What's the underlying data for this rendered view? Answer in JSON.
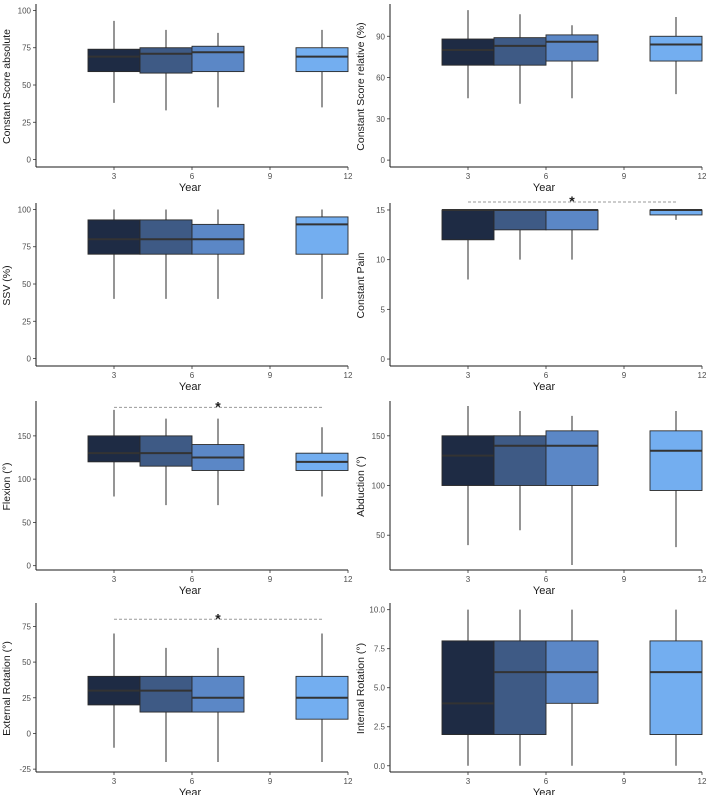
{
  "year_colors": {
    "3": "#1e2b44",
    "5": "#3e5a85",
    "7": "#5b87c6",
    "11": "#73aef0"
  },
  "chart_data": [
    {
      "type": "box",
      "xlabel": "Year",
      "ylabel": "Constant Score absolute",
      "xlim": [
        0,
        12
      ],
      "ylim": [
        -5,
        103
      ],
      "xticks": [
        3,
        6,
        9,
        12
      ],
      "yticks": [
        0,
        25,
        50,
        75,
        100
      ],
      "boxes": [
        {
          "x": 3,
          "min": 38,
          "q1": 59,
          "median": 69,
          "q3": 74,
          "max": 93
        },
        {
          "x": 5,
          "min": 33,
          "q1": 58,
          "median": 71,
          "q3": 75,
          "max": 87
        },
        {
          "x": 7,
          "min": 35,
          "q1": 59,
          "median": 72,
          "q3": 76,
          "max": 85
        },
        {
          "x": 11,
          "min": 35,
          "q1": 59,
          "median": 69,
          "q3": 75,
          "max": 87
        }
      ],
      "significance": null
    },
    {
      "type": "box",
      "xlabel": "Year",
      "ylabel": "Constant Score relative (%)",
      "xlim": [
        0,
        12
      ],
      "ylim": [
        -5,
        112
      ],
      "xticks": [
        3,
        6,
        9,
        12
      ],
      "yticks": [
        0,
        30,
        60,
        90
      ],
      "boxes": [
        {
          "x": 3,
          "min": 45,
          "q1": 69,
          "median": 80,
          "q3": 88,
          "max": 109
        },
        {
          "x": 5,
          "min": 41,
          "q1": 69,
          "median": 83,
          "q3": 89,
          "max": 106
        },
        {
          "x": 7,
          "min": 45,
          "q1": 72,
          "median": 86,
          "q3": 91,
          "max": 98
        },
        {
          "x": 11,
          "min": 48,
          "q1": 72,
          "median": 84,
          "q3": 90,
          "max": 104
        }
      ],
      "significance": null
    },
    {
      "type": "box",
      "xlabel": "Year",
      "ylabel": "SSV (%)",
      "xlim": [
        0,
        12
      ],
      "ylim": [
        -5,
        103
      ],
      "xticks": [
        3,
        6,
        9,
        12
      ],
      "yticks": [
        0,
        25,
        50,
        75,
        100
      ],
      "boxes": [
        {
          "x": 3,
          "min": 40,
          "q1": 70,
          "median": 80,
          "q3": 93,
          "max": 100
        },
        {
          "x": 5,
          "min": 40,
          "q1": 70,
          "median": 80,
          "q3": 93,
          "max": 100
        },
        {
          "x": 7,
          "min": 40,
          "q1": 70,
          "median": 80,
          "q3": 90,
          "max": 100
        },
        {
          "x": 11,
          "min": 40,
          "q1": 70,
          "median": 90,
          "q3": 95,
          "max": 100
        }
      ],
      "significance": null
    },
    {
      "type": "box",
      "xlabel": "Year",
      "ylabel": "Constant Pain",
      "xlim": [
        0,
        12
      ],
      "ylim": [
        -0.7,
        15.5
      ],
      "xticks": [
        3,
        6,
        9,
        12
      ],
      "yticks": [
        0,
        5,
        10,
        15
      ],
      "boxes": [
        {
          "x": 3,
          "min": 8,
          "q1": 12,
          "median": 15,
          "q3": 15,
          "max": 15
        },
        {
          "x": 5,
          "min": 10,
          "q1": 13,
          "median": 15,
          "q3": 15,
          "max": 15
        },
        {
          "x": 7,
          "min": 10,
          "q1": 13,
          "median": 15,
          "q3": 15,
          "max": 15
        },
        {
          "x": 11,
          "min": 14,
          "q1": 14.5,
          "median": 15,
          "q3": 15,
          "max": 15
        }
      ],
      "significance": {
        "label": "*",
        "x_from": 3,
        "x_to": 11,
        "y": 15.8
      }
    },
    {
      "type": "box",
      "xlabel": "Year",
      "ylabel": "Flexion (°)",
      "xlim": [
        0,
        12
      ],
      "ylim": [
        -5,
        188
      ],
      "xticks": [
        3,
        6,
        9,
        12
      ],
      "yticks": [
        0,
        50,
        100,
        150
      ],
      "boxes": [
        {
          "x": 3,
          "min": 80,
          "q1": 120,
          "median": 130,
          "q3": 150,
          "max": 180
        },
        {
          "x": 5,
          "min": 70,
          "q1": 115,
          "median": 130,
          "q3": 150,
          "max": 170
        },
        {
          "x": 7,
          "min": 70,
          "q1": 110,
          "median": 125,
          "q3": 140,
          "max": 170
        },
        {
          "x": 11,
          "min": 80,
          "q1": 110,
          "median": 120,
          "q3": 130,
          "max": 160
        }
      ],
      "significance": {
        "label": "*",
        "x_from": 3,
        "x_to": 11,
        "y": 183
      }
    },
    {
      "type": "box",
      "xlabel": "Year",
      "ylabel": "Abduction (°)",
      "xlim": [
        0,
        12
      ],
      "ylim": [
        15,
        183
      ],
      "xticks": [
        3,
        6,
        9,
        12
      ],
      "yticks": [
        50,
        100,
        150
      ],
      "boxes": [
        {
          "x": 3,
          "min": 40,
          "q1": 100,
          "median": 130,
          "q3": 150,
          "max": 180
        },
        {
          "x": 5,
          "min": 55,
          "q1": 100,
          "median": 140,
          "q3": 150,
          "max": 175
        },
        {
          "x": 7,
          "min": 20,
          "q1": 100,
          "median": 140,
          "q3": 155,
          "max": 170
        },
        {
          "x": 11,
          "min": 38,
          "q1": 95,
          "median": 135,
          "q3": 155,
          "max": 175
        }
      ],
      "significance": null
    },
    {
      "type": "box",
      "xlabel": "Year",
      "ylabel": "External Rotation (°)",
      "xlim": [
        0,
        12
      ],
      "ylim": [
        -27,
        90
      ],
      "xticks": [
        3,
        6,
        9,
        12
      ],
      "yticks": [
        -25,
        0,
        25,
        50,
        75
      ],
      "boxes": [
        {
          "x": 3,
          "min": -10,
          "q1": 20,
          "median": 30,
          "q3": 40,
          "max": 70
        },
        {
          "x": 5,
          "min": -20,
          "q1": 15,
          "median": 30,
          "q3": 40,
          "max": 60
        },
        {
          "x": 7,
          "min": -20,
          "q1": 15,
          "median": 25,
          "q3": 40,
          "max": 60
        },
        {
          "x": 11,
          "min": -20,
          "q1": 10,
          "median": 25,
          "q3": 40,
          "max": 70
        }
      ],
      "significance": {
        "label": "*",
        "x_from": 3,
        "x_to": 11,
        "y": 80
      }
    },
    {
      "type": "box",
      "xlabel": "Year",
      "ylabel": "Internal Rotation (°)",
      "xlim": [
        0,
        12
      ],
      "ylim": [
        -0.4,
        10.3
      ],
      "xticks": [
        3,
        6,
        9,
        12
      ],
      "yticks": [
        0.0,
        2.5,
        5.0,
        7.5,
        10.0
      ],
      "yticks_labels": [
        "0.0",
        "2.5",
        "5.0",
        "7.5",
        "10.0"
      ],
      "boxes": [
        {
          "x": 3,
          "min": 0,
          "q1": 2,
          "median": 4,
          "q3": 8,
          "max": 10
        },
        {
          "x": 5,
          "min": 0,
          "q1": 2,
          "median": 6,
          "q3": 8,
          "max": 10
        },
        {
          "x": 7,
          "min": 0,
          "q1": 4,
          "median": 6,
          "q3": 8,
          "max": 10
        },
        {
          "x": 11,
          "min": 0,
          "q1": 2,
          "median": 6,
          "q3": 8,
          "max": 10
        }
      ],
      "significance": null
    }
  ]
}
